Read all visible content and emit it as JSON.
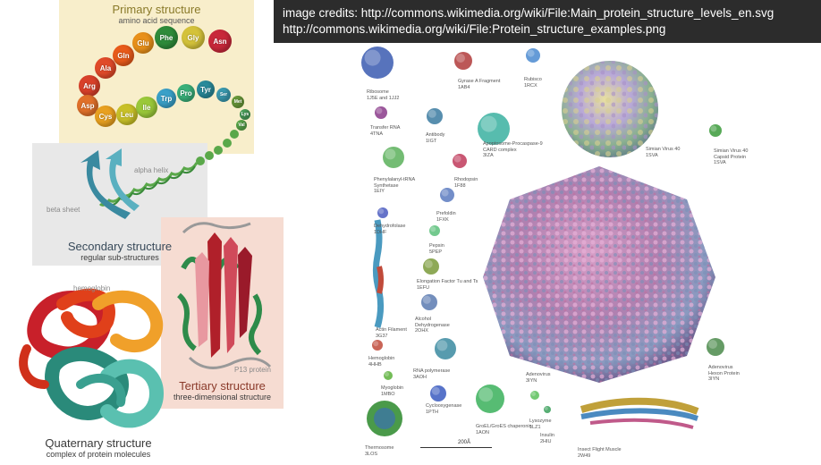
{
  "credits": {
    "line1": "image credits: http://commons.wikimedia.org/wiki/File:Main_protein_structure_levels_en.svg",
    "line2": "http://commons.wikimedia.org/wiki/File:Protein_structure_examples.png"
  },
  "primary": {
    "title": "Primary structure",
    "subtitle": "amino acid sequence",
    "amino_acids": [
      {
        "label": "Phe",
        "color": "#2e8b3a"
      },
      {
        "label": "Gly",
        "color": "#d4c23a"
      },
      {
        "label": "Asn",
        "color": "#c8283a"
      },
      {
        "label": "Glu",
        "color": "#e8901a"
      },
      {
        "label": "Gln",
        "color": "#e85a1a"
      },
      {
        "label": "Ala",
        "color": "#e04a2a"
      },
      {
        "label": "Arg",
        "color": "#d8402a"
      },
      {
        "label": "Asp",
        "color": "#e0702a"
      },
      {
        "label": "Cys",
        "color": "#e8a020"
      },
      {
        "label": "Leu",
        "color": "#c8c028"
      },
      {
        "label": "Ile",
        "color": "#9ac83a"
      },
      {
        "label": "Trp",
        "color": "#3aa0c8"
      },
      {
        "label": "Pro",
        "color": "#3ab07a"
      },
      {
        "label": "Tyr",
        "color": "#2a8a9a"
      },
      {
        "label": "Ser",
        "color": "#3a9ab0"
      },
      {
        "label": "Met",
        "color": "#6a9a3a"
      },
      {
        "label": "Lys",
        "color": "#4aa05a"
      },
      {
        "label": "Val",
        "color": "#5aa84a"
      }
    ]
  },
  "secondary": {
    "title": "Secondary structure",
    "subtitle": "regular sub-structures",
    "alpha_label": "alpha helix",
    "beta_label": "beta sheet"
  },
  "tertiary": {
    "title": "Tertiary structure",
    "subtitle": "three-dimensional structure",
    "protein_label": "P13 protein"
  },
  "quaternary": {
    "title": "Quaternary structure",
    "subtitle": "complex of protein molecules",
    "hemoglobin_label": "hemoglobin"
  },
  "collage": {
    "scale_label": "200Å",
    "proteins": [
      {
        "label": "Ribosome\n1J5E and 1JJ2",
        "color": "#3a5ab0"
      },
      {
        "label": "Gyrase A Fragment\n1AB4",
        "color": "#b03a3a"
      },
      {
        "label": "Rubisco\n1RCX",
        "color": "#4a8ad0"
      },
      {
        "label": "Simian Virus 40\n1SVA",
        "color": "#b0c070"
      },
      {
        "label": "Simian Virus 40\nCapsid Protein\n1SVA",
        "color": "#3a9a3a"
      },
      {
        "label": "Transfer RNA\n4TNA",
        "color": "#8a3a8a"
      },
      {
        "label": "Antibody\n1IGT",
        "color": "#3a7aa0"
      },
      {
        "label": "Apoptosome-Procaspase-9\nCARD complex\n3IZA",
        "color": "#3ab0a0"
      },
      {
        "label": "Phenylalanyl-tRNA\nSynthetase\n1EIY",
        "color": "#5ab05a"
      },
      {
        "label": "Rhodopsin\n1F88",
        "color": "#c03a5a"
      },
      {
        "label": "Prefoldin\n1FXK",
        "color": "#5a7ac0"
      },
      {
        "label": "Dehydrofolase\n1DHF",
        "color": "#4a5ac0"
      },
      {
        "label": "Pepsin\n5PEP",
        "color": "#5ac07a"
      },
      {
        "label": "Elongation Factor Tu and Ts\n1EFU",
        "color": "#7a9a3a"
      },
      {
        "label": "Actin Filament\n3G37",
        "color": "#4a9ac0"
      },
      {
        "label": "Alcohol\nDehydrogenase\n2OHX",
        "color": "#5a7ab0"
      },
      {
        "label": "Hemoglobin\n4HHB",
        "color": "#c04a3a"
      },
      {
        "label": "RNA polymerase\n3AOH",
        "color": "#3a8aa0"
      },
      {
        "label": "Adenovirus\n3IYN",
        "color": "#c070a0"
      },
      {
        "label": "Adenovirus\nHexon Protein\n3IYN",
        "color": "#4a8a4a"
      },
      {
        "label": "Myoglobin\n1MBO",
        "color": "#5ab03a"
      },
      {
        "label": "Cyclooxygenase\n1PTH",
        "color": "#3a5ac0"
      },
      {
        "label": "GroEL/GroES chaperonin\n1AON",
        "color": "#3ab05a"
      },
      {
        "label": "Lysozyme\n1LZ1",
        "color": "#5ac05a"
      },
      {
        "label": "Insulin\n2HIU",
        "color": "#3aa05a"
      },
      {
        "label": "Thermosome\n3LOS",
        "color": "#4a9a4a"
      },
      {
        "label": "Insect Flight Muscle\n2W49",
        "color": "#c0a03a"
      }
    ]
  }
}
